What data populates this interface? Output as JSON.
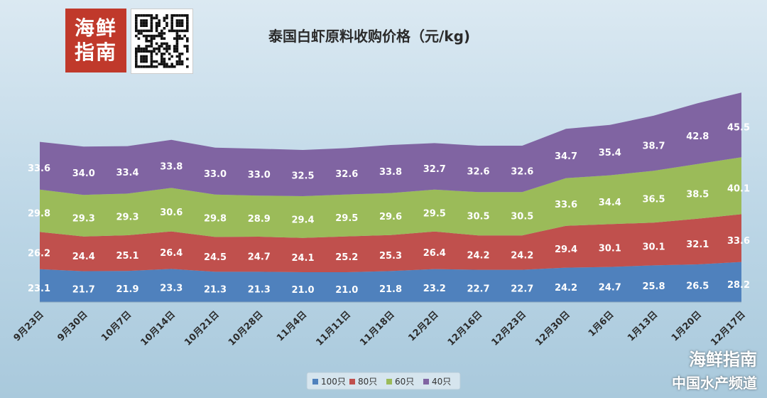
{
  "logo": {
    "text": "海鲜指南"
  },
  "watermark": {
    "title": "海鲜指南",
    "subtitle": "中国水产频道"
  },
  "colors": {
    "s100": "#4f81bd",
    "s80": "#c0504d",
    "s60": "#9bbb59",
    "s40": "#8064a2"
  },
  "chart_data": {
    "type": "area",
    "title": "泰国白虾原料收购价格（元/kg)",
    "categories": [
      "9月23日",
      "9月30日",
      "10月7日",
      "10月14日",
      "10月21日",
      "10月28日",
      "11月4日",
      "11月11日",
      "11月18日",
      "12月2日",
      "12月16日",
      "12月23日",
      "12月30日",
      "1月6日",
      "1月13日",
      "1月20日",
      "12月17日"
    ],
    "series": [
      {
        "name": "100只",
        "values": [
          23.1,
          21.7,
          21.9,
          23.3,
          21.3,
          21.3,
          21.0,
          21.0,
          21.8,
          23.2,
          22.7,
          22.7,
          24.2,
          24.7,
          25.8,
          26.5,
          28.2
        ]
      },
      {
        "name": "80只",
        "values": [
          26.2,
          24.4,
          25.1,
          26.4,
          24.5,
          24.7,
          24.1,
          25.2,
          25.3,
          26.4,
          24.2,
          24.2,
          29.4,
          30.1,
          30.1,
          32.1,
          33.6
        ]
      },
      {
        "name": "60只",
        "values": [
          29.8,
          29.3,
          29.3,
          30.6,
          29.8,
          28.9,
          29.4,
          29.5,
          29.6,
          29.5,
          30.5,
          30.5,
          33.6,
          34.4,
          36.5,
          38.5,
          40.1
        ]
      },
      {
        "name": "40只",
        "values": [
          33.6,
          34.0,
          33.4,
          33.8,
          33.0,
          33.0,
          32.5,
          32.6,
          33.8,
          32.7,
          32.6,
          32.6,
          34.7,
          35.4,
          38.7,
          42.8,
          45.5
        ]
      }
    ],
    "stacked": true,
    "grid": false,
    "legend": "bottom"
  }
}
